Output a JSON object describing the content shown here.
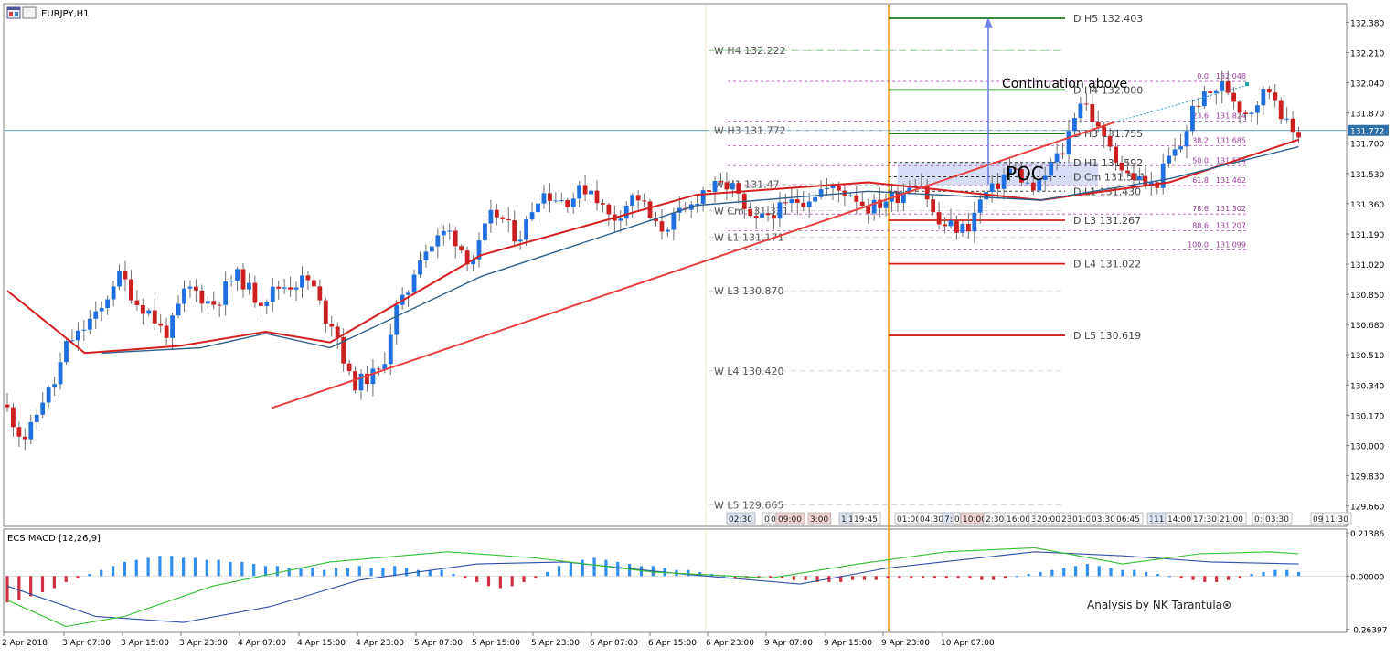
{
  "window": {
    "symbol_title": "EURJPY,H1",
    "indicator_title": "ECS MACD [12,26,9]",
    "credit": "Analysis by NK Tarantula"
  },
  "chart_data": {
    "type": "candlestick",
    "symbol": "EURJPY",
    "timeframe": "H1",
    "price_axis": {
      "ylim": [
        129.55,
        132.48
      ],
      "ticks": [
        132.38,
        132.21,
        132.04,
        131.87,
        131.7,
        131.53,
        131.36,
        131.19,
        131.02,
        130.85,
        130.68,
        130.51,
        130.34,
        130.17,
        130.0,
        129.83,
        129.66
      ],
      "current_price": 131.772
    },
    "time_axis_labels": [
      "2 Apr 2018",
      "3 Apr 07:00",
      "3 Apr 15:00",
      "3 Apr 23:00",
      "4 Apr 07:00",
      "4 Apr 15:00",
      "4 Apr 23:00",
      "5 Apr 07:00",
      "5 Apr 15:00",
      "5 Apr 23:00",
      "6 Apr 07:00",
      "6 Apr 15:00",
      "6 Apr 23:00",
      "9 Apr 07:00",
      "9 Apr 15:00",
      "9 Apr 23:00",
      "10 Apr 07:00"
    ],
    "price_path": [
      130.23,
      130.05,
      130.3,
      130.6,
      130.72,
      130.95,
      130.78,
      130.64,
      130.88,
      130.8,
      130.95,
      130.82,
      130.9,
      130.93,
      130.7,
      130.35,
      130.4,
      130.8,
      131.1,
      131.2,
      131.05,
      131.3,
      131.18,
      131.42,
      131.38,
      131.45,
      131.28,
      131.4,
      131.22,
      131.3,
      131.44,
      131.46,
      131.25,
      131.32,
      131.38,
      131.44,
      131.43,
      131.34,
      131.4,
      131.5,
      131.24,
      131.22,
      131.42,
      131.55,
      131.44,
      131.62,
      131.94,
      131.72,
      131.52,
      131.46,
      131.65,
      131.94,
      132.02,
      131.88,
      132.0,
      131.76
    ],
    "candle_count": 220,
    "moving_averages": [
      {
        "color": "#d42020",
        "points": [
          [
            0,
            130.87
          ],
          [
            18,
            130.52
          ],
          [
            40,
            130.56
          ],
          [
            60,
            130.64
          ],
          [
            75,
            130.58
          ],
          [
            110,
            131.07
          ],
          [
            160,
            131.41
          ],
          [
            200,
            131.48
          ],
          [
            240,
            131.38
          ],
          [
            270,
            131.48
          ],
          [
            300,
            131.72
          ]
        ]
      },
      {
        "color": "#2f5f8a",
        "points": [
          [
            22,
            130.52
          ],
          [
            45,
            130.55
          ],
          [
            60,
            130.63
          ],
          [
            75,
            130.55
          ],
          [
            110,
            130.95
          ],
          [
            160,
            131.35
          ],
          [
            200,
            131.43
          ],
          [
            240,
            131.38
          ],
          [
            270,
            131.5
          ],
          [
            300,
            131.68
          ]
        ]
      }
    ],
    "weekly_pivots": [
      {
        "label": "W  H4 132.222",
        "value": 132.222
      },
      {
        "label": "W  H3 131.772",
        "value": 131.772
      },
      {
        "label": "W  H1 131.47",
        "value": 131.47
      },
      {
        "label": "W  Cm 131.321",
        "value": 131.321
      },
      {
        "label": "W  L1 131.171",
        "value": 131.171
      },
      {
        "label": "W  L3 130.870",
        "value": 130.87
      },
      {
        "label": "W  L4 130.420",
        "value": 130.42
      },
      {
        "label": "W  L5 129.665",
        "value": 129.665
      }
    ],
    "daily_pivots": [
      {
        "label": "D  H5 132.403",
        "value": 132.403,
        "color": "#1f7a1f"
      },
      {
        "label": "D  H4 132.000",
        "value": 132.0,
        "color": "#1f7a1f"
      },
      {
        "label": "D  H3 131.755",
        "value": 131.755,
        "color": "#1f7a1f"
      },
      {
        "label": "D  H1 131.592",
        "value": 131.592,
        "color": "#333333"
      },
      {
        "label": "D  Cm  131.511",
        "value": 131.511,
        "color": "#333333"
      },
      {
        "label": "D  L1 131.430",
        "value": 131.43,
        "color": "#333333"
      },
      {
        "label": "D  L3 131.267",
        "value": 131.267,
        "color": "#d42020"
      },
      {
        "label": "D  L4 131.022",
        "value": 131.022,
        "color": "#d42020"
      },
      {
        "label": "D  L5 130.619",
        "value": 130.619,
        "color": "#d42020"
      }
    ],
    "fibonacci": [
      {
        "level": "0.0",
        "price": "132.048"
      },
      {
        "level": "23.6",
        "price": "131.824"
      },
      {
        "level": "38.2",
        "price": "131.685"
      },
      {
        "level": "50.0",
        "price": "131.574"
      },
      {
        "level": "61.8",
        "price": "131.462"
      },
      {
        "level": "78.6",
        "price": "131.302"
      },
      {
        "level": "88.6",
        "price": "131.207"
      },
      {
        "level": "100.0",
        "price": "131.099"
      }
    ],
    "annotations": {
      "continuation_text": "Continuation above",
      "poc_text": "POC",
      "poc_zone": [
        131.465,
        131.595
      ],
      "trendline": {
        "start": [
          130.21
        ],
        "end": [
          131.82
        ]
      },
      "arrow_target": 132.4
    },
    "session_time_labels": [
      "02:30",
      "0",
      "0",
      "09:00",
      "3:00",
      "1",
      "1",
      "19:45",
      "01:00",
      "04:30",
      "7:0",
      "0",
      "10:00",
      "2:30",
      "16:00",
      "3",
      "20:00",
      "23",
      "01:00",
      "03:30",
      "06:45",
      "1",
      "11:3",
      "14:00",
      "17:30",
      "21:00",
      "0:1",
      "03:30",
      "09",
      "11:30"
    ],
    "macd": {
      "ylim": [
        -0.275,
        0.228
      ],
      "ticks": [
        0.21386,
        0.0,
        -0.26397
      ],
      "tick_labels": [
        "0.21386",
        "0.00000",
        "-0.26397"
      ],
      "histogram": [
        -0.13,
        -0.12,
        -0.1,
        -0.08,
        -0.06,
        -0.03,
        -0.01,
        0.01,
        0.03,
        0.05,
        0.07,
        0.08,
        0.09,
        0.1,
        0.1,
        0.09,
        0.09,
        0.08,
        0.08,
        0.07,
        0.07,
        0.06,
        0.05,
        0.05,
        0.04,
        0.04,
        0.04,
        0.03,
        0.04,
        0.04,
        0.05,
        0.04,
        0.04,
        0.05,
        0.04,
        0.03,
        0.03,
        0.03,
        0.01,
        -0.01,
        -0.03,
        -0.05,
        -0.06,
        -0.05,
        -0.03,
        -0.01,
        0.02,
        0.05,
        0.07,
        0.08,
        0.09,
        0.08,
        0.07,
        0.06,
        0.05,
        0.05,
        0.04,
        0.03,
        0.03,
        0.02,
        0.01,
        0.0,
        -0.01,
        -0.01,
        -0.01,
        -0.01,
        -0.01,
        -0.02,
        -0.02,
        -0.03,
        -0.03,
        -0.03,
        -0.02,
        -0.02,
        -0.02,
        -0.01,
        -0.01,
        -0.01,
        -0.01,
        -0.01,
        -0.01,
        -0.01,
        -0.01,
        -0.02,
        -0.02,
        -0.01,
        0.0,
        0.01,
        0.02,
        0.03,
        0.04,
        0.05,
        0.06,
        0.05,
        0.04,
        0.03,
        0.03,
        0.02,
        0.01,
        0.0,
        -0.01,
        -0.02,
        -0.03,
        -0.03,
        -0.02,
        -0.01,
        0.01,
        0.02,
        0.03,
        0.03,
        0.02
      ],
      "signal": [
        [
          0,
          -0.05
        ],
        [
          15,
          -0.2
        ],
        [
          30,
          -0.23
        ],
        [
          45,
          -0.15
        ],
        [
          60,
          -0.02
        ],
        [
          80,
          0.06
        ],
        [
          95,
          0.07
        ],
        [
          115,
          0.01
        ],
        [
          135,
          -0.04
        ],
        [
          150,
          0.04
        ],
        [
          175,
          0.12
        ],
        [
          190,
          0.1
        ],
        [
          205,
          0.07
        ],
        [
          220,
          0.06
        ]
      ],
      "macd_line": [
        [
          0,
          -0.12
        ],
        [
          10,
          -0.25
        ],
        [
          20,
          -0.2
        ],
        [
          35,
          -0.05
        ],
        [
          55,
          0.07
        ],
        [
          75,
          0.12
        ],
        [
          90,
          0.09
        ],
        [
          110,
          0.02
        ],
        [
          130,
          -0.01
        ],
        [
          145,
          0.06
        ],
        [
          160,
          0.12
        ],
        [
          175,
          0.14
        ],
        [
          190,
          0.06
        ],
        [
          203,
          0.11
        ],
        [
          215,
          0.12
        ],
        [
          220,
          0.11
        ]
      ]
    }
  }
}
